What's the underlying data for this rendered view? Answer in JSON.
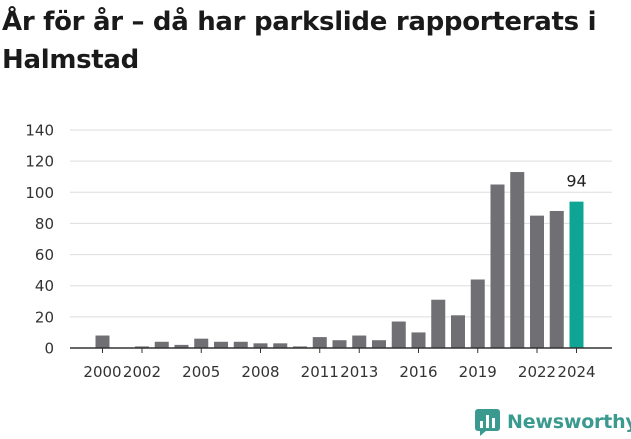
{
  "title": "År för år – då har parkslide rapporterats i Halmstad",
  "brand": {
    "name": "Newsworthy",
    "color": "#3a9a8f",
    "icon": "newsworthy-logo-icon"
  },
  "colors": {
    "bar": "#6f6f74",
    "highlight": "#0fa595",
    "grid": "#dddddd",
    "axis": "#333333",
    "text": "#333333"
  },
  "chart_data": {
    "type": "bar",
    "title": "År för år – då har parkslide rapporterats i Halmstad",
    "xlabel": "",
    "ylabel": "",
    "categories": [
      "2000",
      "2001",
      "2002",
      "2003",
      "2004",
      "2005",
      "2006",
      "2007",
      "2008",
      "2009",
      "2010",
      "2011",
      "2012",
      "2013",
      "2014",
      "2015",
      "2016",
      "2017",
      "2018",
      "2019",
      "2020",
      "2021",
      "2022",
      "2023",
      "2024"
    ],
    "values": [
      8,
      0,
      1,
      4,
      2,
      6,
      4,
      4,
      3,
      3,
      1,
      7,
      5,
      8,
      5,
      17,
      10,
      31,
      21,
      44,
      105,
      113,
      85,
      88,
      94
    ],
    "x_tick_labels": [
      "2000",
      "2002",
      "2005",
      "2008",
      "2011",
      "2013",
      "2016",
      "2019",
      "2022",
      "2024"
    ],
    "y_ticks": [
      0,
      20,
      40,
      60,
      80,
      100,
      120,
      140
    ],
    "ylim": [
      0,
      140
    ],
    "highlight_category": "2024",
    "data_labels": [
      {
        "category": "2024",
        "text": "94"
      }
    ],
    "grid": true,
    "legend": "none"
  }
}
